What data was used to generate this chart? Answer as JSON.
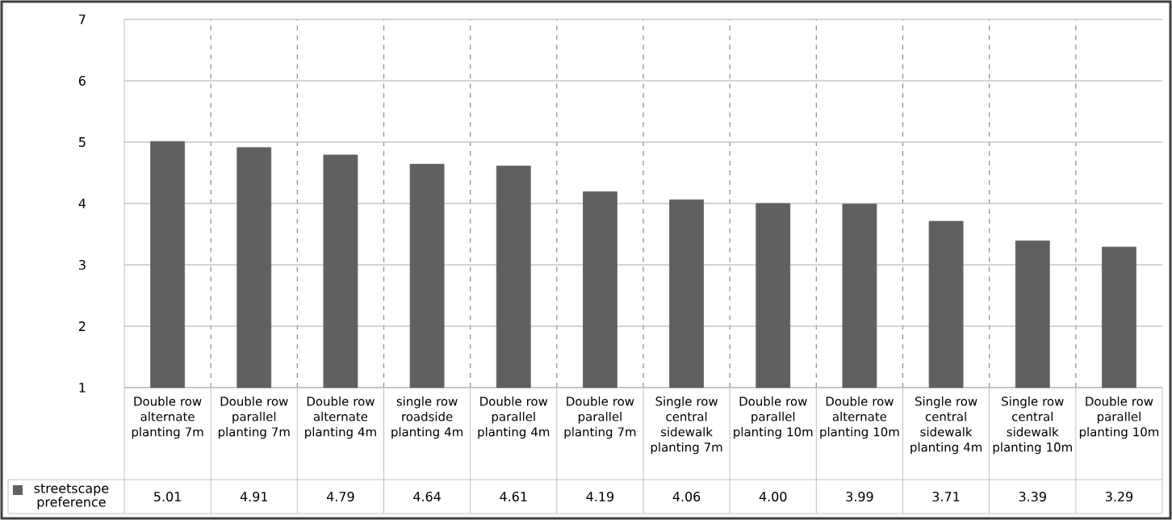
{
  "chart_data": {
    "type": "bar",
    "categories": [
      "Double row alternate planting 7m",
      "Double row parallel planting 7m",
      "Double row alternate planting 4m",
      "single row roadside planting 4m",
      "Double row parallel planting 4m",
      "Double row parallel planting 7m",
      "Single row central sidewalk planting 7m",
      "Double row parallel planting 10m",
      "Double row alternate planting 10m",
      "Single row central sidewalk planting 4m",
      "Single row central sidewalk planting 10m",
      "Double row parallel planting 10m"
    ],
    "series": [
      {
        "name": "streetscape preference",
        "color": "#606060",
        "values": [
          5.01,
          4.91,
          4.79,
          4.64,
          4.61,
          4.19,
          4.06,
          4.0,
          3.99,
          3.71,
          3.39,
          3.29
        ],
        "value_labels": [
          "5.01",
          "4.91",
          "4.79",
          "4.64",
          "4.61",
          "4.19",
          "4.06",
          "4.00",
          "3.99",
          "3.71",
          "3.39",
          "3.29"
        ]
      }
    ],
    "ylim": [
      1,
      7
    ],
    "yticks": [
      1,
      2,
      3,
      4,
      5,
      6,
      7
    ],
    "grid": true,
    "legend": "bottom left"
  }
}
